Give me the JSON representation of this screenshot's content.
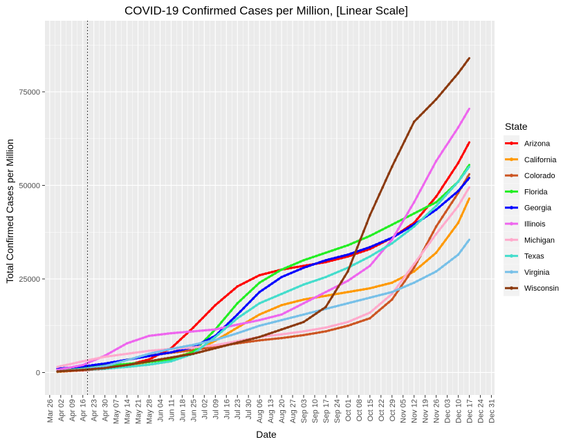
{
  "chart_data": {
    "type": "line",
    "title": "COVID-19 Confirmed Cases per Million, [Linear Scale]",
    "xlabel": "Date",
    "ylabel": "Total Confirmed Cases per Million",
    "x_tick_labels": [
      "Mar 26",
      "Apr 02",
      "Apr 09",
      "Apr 16",
      "Apr 23",
      "Apr 30",
      "May 07",
      "May 14",
      "May 21",
      "May 28",
      "Jun 04",
      "Jun 11",
      "Jun 18",
      "Jun 25",
      "Jul 02",
      "Jul 09",
      "Jul 16",
      "Jul 23",
      "Jul 30",
      "Aug 06",
      "Aug 13",
      "Aug 20",
      "Aug 27",
      "Sep 03",
      "Sep 10",
      "Sep 17",
      "Sep 24",
      "Oct 01",
      "Oct 08",
      "Oct 15",
      "Oct 22",
      "Oct 29",
      "Nov 05",
      "Nov 12",
      "Nov 19",
      "Nov 26",
      "Dec 03",
      "Dec 10",
      "Dec 17",
      "Dec 24",
      "Dec 31"
    ],
    "y_ticks": [
      0,
      25000,
      50000,
      75000
    ],
    "y_tick_labels": [
      "0",
      "25000",
      "50000",
      "75000"
    ],
    "ylim": [
      -6000,
      94000
    ],
    "xlim": [
      "2020-03-23",
      "2021-01-02"
    ],
    "vline_date": "2020-04-19",
    "grid": true,
    "legend": {
      "title": "State",
      "placement": "right"
    },
    "x": [
      "2020-03-31",
      "2020-04-16",
      "2020-04-30",
      "2020-05-14",
      "2020-05-28",
      "2020-06-11",
      "2020-06-25",
      "2020-07-09",
      "2020-07-23",
      "2020-08-06",
      "2020-08-20",
      "2020-09-03",
      "2020-09-17",
      "2020-10-01",
      "2020-10-15",
      "2020-10-29",
      "2020-11-12",
      "2020-11-26",
      "2020-12-10",
      "2020-12-17"
    ],
    "series": [
      {
        "name": "Arizona",
        "color": "#ff0000",
        "values": [
          200,
          600,
          1000,
          2000,
          3500,
          6500,
          12000,
          18000,
          23000,
          26000,
          27500,
          28500,
          29500,
          31000,
          33000,
          36000,
          40000,
          47000,
          56000,
          61500
        ]
      },
      {
        "name": "California",
        "color": "#ff9900",
        "values": [
          200,
          700,
          1200,
          1900,
          2800,
          3800,
          5500,
          8500,
          12000,
          15500,
          18000,
          19500,
          20500,
          21500,
          22500,
          24000,
          27000,
          32000,
          40000,
          46500
        ]
      },
      {
        "name": "Colorado",
        "color": "#cc5522",
        "values": [
          400,
          1200,
          2200,
          3400,
          4500,
          5300,
          6000,
          6900,
          7800,
          8600,
          9200,
          10000,
          11000,
          12500,
          14500,
          19500,
          28000,
          39000,
          48000,
          53000
        ]
      },
      {
        "name": "Florida",
        "color": "#22ee22",
        "values": [
          300,
          1100,
          1800,
          2300,
          2800,
          3500,
          5500,
          11500,
          18500,
          24000,
          27500,
          30000,
          32000,
          34000,
          36500,
          39500,
          42500,
          45500,
          51000,
          55500
        ]
      },
      {
        "name": "Georgia",
        "color": "#0000ff",
        "values": [
          1000,
          1600,
          2400,
          3400,
          4400,
          5400,
          6800,
          9800,
          15500,
          21500,
          25500,
          28000,
          30000,
          31500,
          33500,
          36000,
          39500,
          43500,
          48500,
          52000
        ]
      },
      {
        "name": "Illinois",
        "color": "#ee66ee",
        "values": [
          700,
          2000,
          4500,
          7800,
          9800,
          10500,
          11000,
          11500,
          12800,
          14000,
          15500,
          18500,
          21500,
          24500,
          28500,
          35500,
          45500,
          56500,
          65500,
          70500
        ]
      },
      {
        "name": "Michigan",
        "color": "#ffaacc",
        "values": [
          1500,
          3000,
          4200,
          5000,
          5800,
          6300,
          6700,
          7300,
          8400,
          9500,
          10200,
          11000,
          12000,
          13500,
          16000,
          21000,
          29000,
          37000,
          44500,
          49500
        ]
      },
      {
        "name": "Texas",
        "color": "#44ddcc",
        "values": [
          300,
          700,
          1000,
          1500,
          2100,
          3000,
          5000,
          9500,
          14500,
          18500,
          21000,
          23500,
          25500,
          28000,
          31000,
          34500,
          39000,
          44500,
          51000,
          55000
        ]
      },
      {
        "name": "Virginia",
        "color": "#77c0e8",
        "values": [
          300,
          900,
          1700,
          3300,
          5000,
          6300,
          7400,
          8700,
          10500,
          12500,
          14000,
          15500,
          17000,
          18500,
          20000,
          21500,
          24000,
          27000,
          31500,
          35500
        ]
      },
      {
        "name": "Wisconsin",
        "color": "#8b3a0f",
        "values": [
          300,
          700,
          1200,
          2000,
          3000,
          4000,
          5000,
          6500,
          8000,
          9500,
          11500,
          13500,
          17500,
          27000,
          42000,
          55000,
          67000,
          73000,
          80000,
          84000
        ]
      }
    ]
  }
}
